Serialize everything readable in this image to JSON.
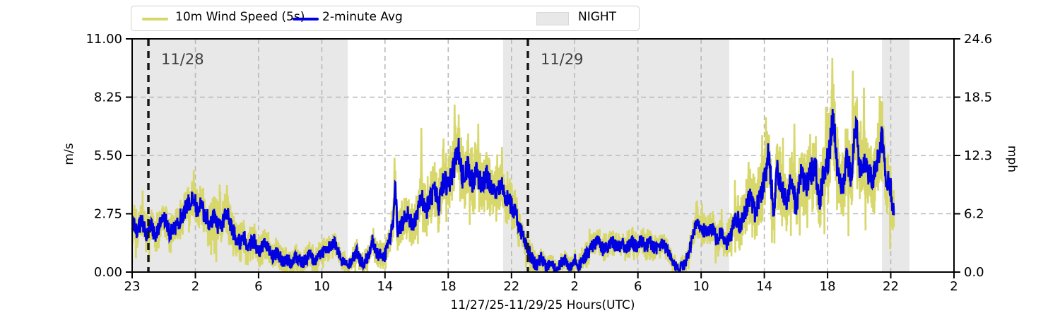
{
  "chart_data": {
    "type": "line",
    "title": "",
    "xlabel": "11/27/25-11/29/25  Hours(UTC)",
    "ylabel_left": "m/s",
    "ylabel_right": "mph",
    "ylim_left": [
      0,
      11
    ],
    "yticks_left": {
      "labels": [
        "0.00",
        "2.75",
        "5.50",
        "8.25",
        "11.00"
      ],
      "values": [
        0,
        2.75,
        5.5,
        8.25,
        11
      ]
    },
    "yticks_right": {
      "labels": [
        "0.0",
        "6.2",
        "12.3",
        "18.5",
        "24.6"
      ],
      "values": [
        0,
        2.75,
        5.5,
        8.25,
        11
      ]
    },
    "x_axis": {
      "span_hours": 52,
      "tick_hours": [
        0,
        4,
        8,
        12,
        16,
        20,
        24,
        28,
        32,
        36,
        40,
        44,
        48,
        52
      ],
      "tick_labels": [
        "23",
        "2",
        "6",
        "10",
        "14",
        "18",
        "22",
        "2",
        "6",
        "10",
        "14",
        "18",
        "22",
        "2"
      ]
    },
    "grid": true,
    "legend_position": "top-left",
    "night_label": "NIGHT",
    "night_regions_h": [
      [
        0,
        13.64
      ],
      [
        23.47,
        37.78
      ],
      [
        47.44,
        49.18
      ]
    ],
    "annotations": [
      {
        "label": "11/28",
        "h": 1.03
      },
      {
        "label": "11/29",
        "h": 25.04
      }
    ],
    "data_range_h": [
      0,
      48.2
    ],
    "colors": {
      "night": "#e8e8e8",
      "grid": "#b9b9b9",
      "day_line": "#151515",
      "annotation_text": "#3d3d3d",
      "spine": "#000000"
    },
    "series": [
      {
        "name": "10m Wind Speed (5s)",
        "color": "#d7d76b",
        "role": "gust_envelope_line",
        "spread_keyframes": [
          [
            0,
            0.7
          ],
          [
            2,
            0.7
          ],
          [
            4,
            0.9
          ],
          [
            6,
            0.8
          ],
          [
            8,
            0.6
          ],
          [
            10,
            0.45
          ],
          [
            12,
            0.5
          ],
          [
            13.5,
            0.35
          ],
          [
            15,
            0.5
          ],
          [
            16,
            0.6
          ],
          [
            17,
            0.8
          ],
          [
            18,
            1.0
          ],
          [
            19,
            1.1
          ],
          [
            20,
            1.3
          ],
          [
            21,
            1.3
          ],
          [
            22,
            1.2
          ],
          [
            23,
            1.1
          ],
          [
            24,
            0.9
          ],
          [
            25,
            0.6
          ],
          [
            26,
            0.3
          ],
          [
            27,
            0.3
          ],
          [
            28,
            0.35
          ],
          [
            29,
            0.45
          ],
          [
            31,
            0.5
          ],
          [
            33,
            0.5
          ],
          [
            34.5,
            0.3
          ],
          [
            35.5,
            0.6
          ],
          [
            36.5,
            0.6
          ],
          [
            37.5,
            0.6
          ],
          [
            38.5,
            1.0
          ],
          [
            39.5,
            1.3
          ],
          [
            40.5,
            1.4
          ],
          [
            41.5,
            1.3
          ],
          [
            42.5,
            1.4
          ],
          [
            43.5,
            1.5
          ],
          [
            44.5,
            1.6
          ],
          [
            45.5,
            1.5
          ],
          [
            46.5,
            1.4
          ],
          [
            47.5,
            1.5
          ],
          [
            48.2,
            1.1
          ]
        ],
        "gust_peaks": [
          [
            3.9,
            4.8
          ],
          [
            6.0,
            4.1
          ],
          [
            16.6,
            5.4
          ],
          [
            18.3,
            6.8
          ],
          [
            19.7,
            6.3
          ],
          [
            20.4,
            7.9
          ],
          [
            21.9,
            7.0
          ],
          [
            23.4,
            5.9
          ],
          [
            35.7,
            3.3
          ],
          [
            39.0,
            5.2
          ],
          [
            40.1,
            7.3
          ],
          [
            41.9,
            7.0
          ],
          [
            43.9,
            7.8
          ],
          [
            44.3,
            10.1
          ],
          [
            45.6,
            9.5
          ],
          [
            46.3,
            8.7
          ],
          [
            47.3,
            8.3
          ]
        ]
      },
      {
        "name": "2-minute Avg",
        "color": "#0000e0",
        "role": "average_line",
        "keyframes": [
          [
            0,
            2.3
          ],
          [
            0.3,
            1.9
          ],
          [
            0.6,
            2.4
          ],
          [
            0.9,
            1.8
          ],
          [
            1.2,
            2.2
          ],
          [
            1.5,
            1.6
          ],
          [
            1.8,
            2.3
          ],
          [
            2.1,
            2.5
          ],
          [
            2.4,
            1.8
          ],
          [
            2.7,
            2.1
          ],
          [
            3.0,
            2.5
          ],
          [
            3.3,
            2.9
          ],
          [
            3.6,
            3.3
          ],
          [
            3.9,
            3.6
          ],
          [
            4.1,
            2.9
          ],
          [
            4.3,
            3.3
          ],
          [
            4.6,
            2.7
          ],
          [
            4.9,
            2.4
          ],
          [
            5.2,
            2.6
          ],
          [
            5.5,
            2.1
          ],
          [
            5.8,
            2.4
          ],
          [
            6.0,
            2.9
          ],
          [
            6.2,
            2.3
          ],
          [
            6.5,
            1.7
          ],
          [
            6.8,
            1.4
          ],
          [
            7.1,
            1.6
          ],
          [
            7.4,
            1.2
          ],
          [
            7.7,
            1.5
          ],
          [
            8.0,
            0.9
          ],
          [
            8.3,
            1.3
          ],
          [
            8.6,
            1.1
          ],
          [
            8.9,
            0.7
          ],
          [
            9.2,
            0.9
          ],
          [
            9.5,
            0.5
          ],
          [
            9.8,
            0.6
          ],
          [
            10.1,
            0.4
          ],
          [
            10.4,
            0.7
          ],
          [
            10.8,
            0.4
          ],
          [
            11.2,
            0.8
          ],
          [
            11.6,
            0.5
          ],
          [
            12.0,
            0.8
          ],
          [
            12.4,
            1.1
          ],
          [
            12.8,
            1.4
          ],
          [
            13.2,
            0.6
          ],
          [
            13.5,
            0.3
          ],
          [
            13.9,
            0.5
          ],
          [
            14.2,
            1.0
          ],
          [
            14.5,
            0.4
          ],
          [
            14.9,
            0.7
          ],
          [
            15.2,
            1.5
          ],
          [
            15.5,
            0.8
          ],
          [
            15.9,
            0.7
          ],
          [
            16.2,
            1.2
          ],
          [
            16.5,
            2.2
          ],
          [
            16.65,
            4.0
          ],
          [
            16.8,
            1.9
          ],
          [
            17.1,
            2.3
          ],
          [
            17.4,
            2.8
          ],
          [
            17.7,
            2.2
          ],
          [
            18.0,
            2.7
          ],
          [
            18.3,
            3.6
          ],
          [
            18.55,
            2.9
          ],
          [
            18.8,
            3.3
          ],
          [
            19.1,
            3.9
          ],
          [
            19.4,
            3.2
          ],
          [
            19.7,
            4.3
          ],
          [
            20.0,
            4.0
          ],
          [
            20.3,
            4.8
          ],
          [
            20.65,
            5.8
          ],
          [
            20.9,
            4.4
          ],
          [
            21.2,
            5.0
          ],
          [
            21.5,
            4.3
          ],
          [
            21.8,
            4.7
          ],
          [
            22.1,
            4.1
          ],
          [
            22.4,
            4.6
          ],
          [
            22.7,
            4.0
          ],
          [
            23.0,
            3.9
          ],
          [
            23.3,
            4.2
          ],
          [
            23.7,
            3.5
          ],
          [
            24.0,
            3.1
          ],
          [
            24.3,
            2.7
          ],
          [
            24.6,
            1.9
          ],
          [
            25.0,
            1.2
          ],
          [
            25.3,
            0.6
          ],
          [
            25.6,
            0.3
          ],
          [
            25.9,
            0.7
          ],
          [
            26.2,
            0.2
          ],
          [
            26.5,
            0.5
          ],
          [
            26.8,
            0.1
          ],
          [
            27.1,
            0.4
          ],
          [
            27.4,
            0.6
          ],
          [
            27.7,
            0.2
          ],
          [
            28.0,
            0.6
          ],
          [
            28.3,
            0.3
          ],
          [
            28.6,
            0.7
          ],
          [
            28.9,
            1.0
          ],
          [
            29.2,
            1.3
          ],
          [
            29.5,
            1.5
          ],
          [
            29.8,
            1.0
          ],
          [
            30.1,
            1.2
          ],
          [
            30.4,
            1.4
          ],
          [
            30.7,
            1.1
          ],
          [
            31.0,
            1.3
          ],
          [
            31.3,
            1.1
          ],
          [
            31.6,
            1.4
          ],
          [
            31.9,
            1.2
          ],
          [
            32.2,
            1.5
          ],
          [
            32.5,
            1.2
          ],
          [
            32.8,
            1.4
          ],
          [
            33.1,
            1.1
          ],
          [
            33.4,
            1.3
          ],
          [
            33.7,
            1.2
          ],
          [
            34.0,
            0.9
          ],
          [
            34.3,
            0.4
          ],
          [
            34.6,
            0.1
          ],
          [
            34.9,
            0.3
          ],
          [
            35.2,
            0.8
          ],
          [
            35.5,
            1.9
          ],
          [
            35.8,
            2.5
          ],
          [
            36.1,
            2.0
          ],
          [
            36.4,
            1.8
          ],
          [
            36.7,
            2.1
          ],
          [
            37.0,
            1.5
          ],
          [
            37.3,
            1.9
          ],
          [
            37.6,
            1.3
          ],
          [
            37.9,
            1.8
          ],
          [
            38.2,
            2.6
          ],
          [
            38.5,
            2.2
          ],
          [
            38.8,
            3.0
          ],
          [
            39.1,
            3.5
          ],
          [
            39.4,
            2.7
          ],
          [
            39.7,
            3.4
          ],
          [
            40.0,
            4.3
          ],
          [
            40.25,
            5.5
          ],
          [
            40.6,
            2.9
          ],
          [
            40.8,
            4.8
          ],
          [
            41.1,
            4.1
          ],
          [
            41.4,
            3.1
          ],
          [
            41.7,
            4.4
          ],
          [
            42.0,
            3.0
          ],
          [
            42.3,
            4.7
          ],
          [
            42.6,
            3.9
          ],
          [
            42.9,
            4.6
          ],
          [
            43.2,
            5.1
          ],
          [
            43.5,
            3.4
          ],
          [
            43.8,
            4.9
          ],
          [
            44.1,
            5.5
          ],
          [
            44.35,
            7.6
          ],
          [
            44.6,
            4.9
          ],
          [
            44.9,
            3.9
          ],
          [
            45.2,
            5.2
          ],
          [
            45.5,
            4.6
          ],
          [
            45.8,
            7.2
          ],
          [
            46.05,
            4.8
          ],
          [
            46.3,
            5.2
          ],
          [
            46.6,
            4.6
          ],
          [
            46.9,
            4.4
          ],
          [
            47.2,
            5.6
          ],
          [
            47.45,
            6.3
          ],
          [
            47.7,
            4.3
          ],
          [
            47.9,
            4.5
          ],
          [
            48.05,
            3.6
          ],
          [
            48.2,
            2.7
          ]
        ]
      }
    ]
  }
}
